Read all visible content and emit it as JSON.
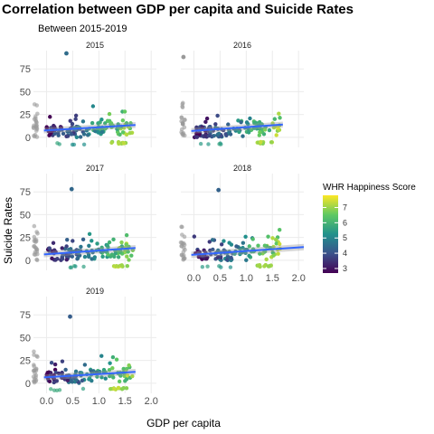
{
  "chart_data": {
    "type": "scatter",
    "title": "Correlation between GDP per capita and Suicide Rates",
    "subtitle": "Between 2015-2019",
    "xlabel": "GDP per capita",
    "ylabel": "Suicide Rates",
    "xlim": [
      -0.25,
      2.1
    ],
    "ylim": [
      -11,
      95
    ],
    "x_ticks": [
      0.0,
      0.5,
      1.0,
      1.5,
      2.0
    ],
    "y_ticks": [
      0,
      25,
      50,
      75
    ],
    "x_tick_labels": [
      "0.0",
      "0.5",
      "1.0",
      "1.5",
      "2.0"
    ],
    "y_tick_labels": [
      "0",
      "25",
      "50",
      "75"
    ],
    "grid": true,
    "legend": {
      "title": "WHR Happiness Score",
      "placement": "right",
      "min": 2.7,
      "max": 7.8,
      "ticks": [
        3,
        4,
        5,
        6,
        7
      ],
      "tick_labels": [
        "3",
        "4",
        "5",
        "6",
        "7"
      ]
    },
    "missing_color": "#999999",
    "trend_color": "#3366FF",
    "panels": [
      {
        "label": "2015",
        "trend": {
          "x0": -0.05,
          "y0": 7.5,
          "x1": 1.7,
          "y1": 13.5,
          "se": 2.0
        },
        "outliers": [
          {
            "x": 0.38,
            "y": 92,
            "score": 4.5
          }
        ]
      },
      {
        "label": "2016",
        "trend": {
          "x0": -0.05,
          "y0": 7.0,
          "x1": 1.7,
          "y1": 14.0,
          "se": 2.0
        },
        "outliers": [
          {
            "x": -0.2,
            "y": 88,
            "score": null
          }
        ]
      },
      {
        "label": "2017",
        "trend": {
          "x0": -0.05,
          "y0": 6.5,
          "x1": 1.7,
          "y1": 13.5,
          "se": 2.0
        },
        "outliers": [
          {
            "x": 0.48,
            "y": 78,
            "score": 4.4
          }
        ]
      },
      {
        "label": "2018",
        "trend": {
          "x0": -0.05,
          "y0": 6.0,
          "x1": 2.1,
          "y1": 14.5,
          "se": 2.2
        },
        "outliers": [
          {
            "x": 0.47,
            "y": 77,
            "score": 4.3
          }
        ]
      },
      {
        "label": "2019",
        "trend": {
          "x0": -0.05,
          "y0": 6.5,
          "x1": 1.7,
          "y1": 12.5,
          "se": 2.0
        },
        "outliers": [
          {
            "x": 0.45,
            "y": 73,
            "score": 4.2
          }
        ]
      }
    ]
  }
}
